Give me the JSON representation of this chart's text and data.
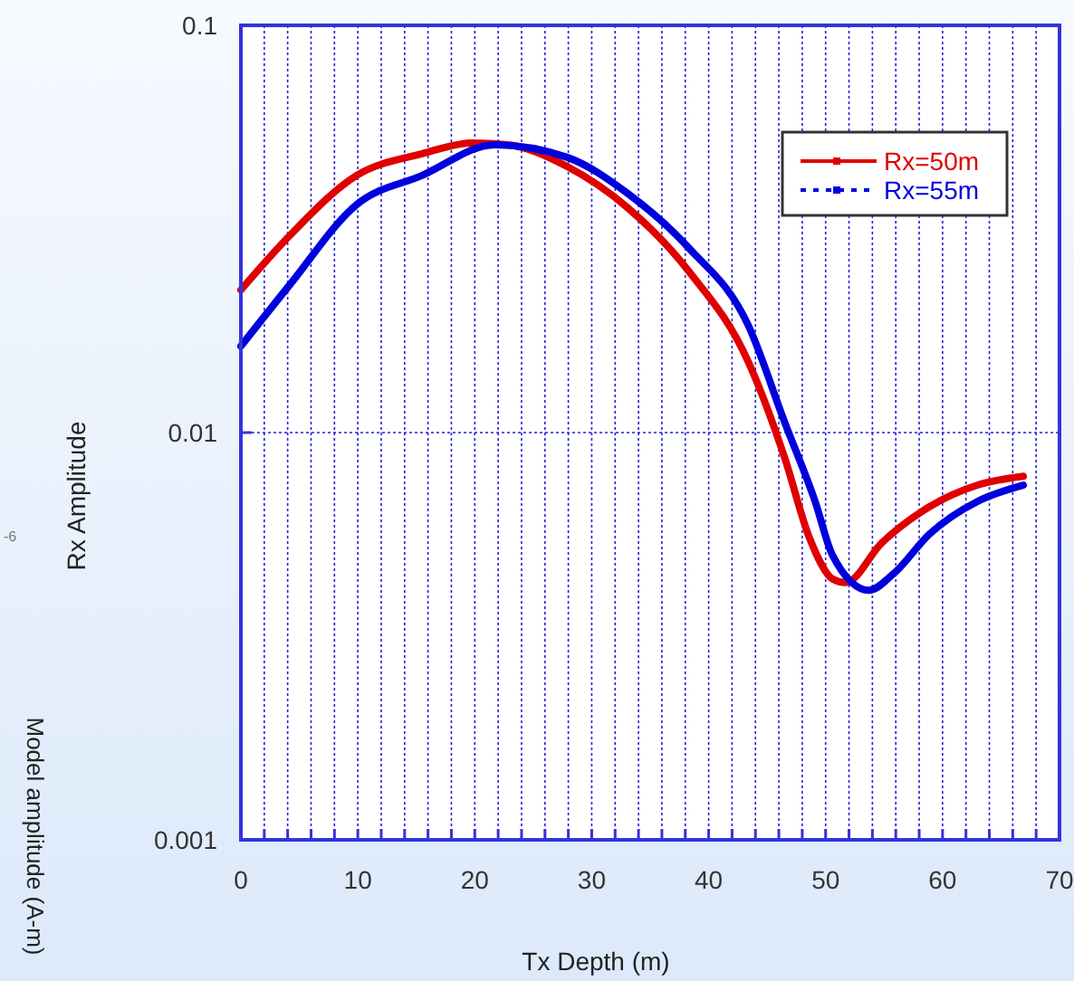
{
  "chart_data": {
    "type": "line",
    "xlabel": "Tx Depth (m)",
    "ylabel": "Rx Amplitude",
    "log": "y",
    "xlim": [
      0,
      70
    ],
    "ylim": [
      0.001,
      0.1
    ],
    "xticks": [
      0,
      {
        "value": 2,
        "label": null
      },
      {
        "value": 4,
        "label": null
      },
      {
        "value": 6,
        "label": null
      },
      {
        "value": 8,
        "label": null
      },
      10,
      {
        "value": 12,
        "label": null
      },
      {
        "value": 14,
        "label": null
      },
      {
        "value": 16,
        "label": null
      },
      {
        "value": 18,
        "label": null
      },
      20,
      {
        "value": 22,
        "label": null
      },
      {
        "value": 24,
        "label": null
      },
      {
        "value": 26,
        "label": null
      },
      {
        "value": 28,
        "label": null
      },
      30,
      {
        "value": 32,
        "label": null
      },
      {
        "value": 34,
        "label": null
      },
      {
        "value": 36,
        "label": null
      },
      {
        "value": 38,
        "label": null
      },
      40,
      {
        "value": 42,
        "label": null
      },
      {
        "value": 44,
        "label": null
      },
      {
        "value": 46,
        "label": null
      },
      {
        "value": 48,
        "label": null
      },
      50,
      {
        "value": 52,
        "label": null
      },
      {
        "value": 54,
        "label": null
      },
      {
        "value": 56,
        "label": null
      },
      {
        "value": 58,
        "label": null
      },
      60,
      {
        "value": 62,
        "label": null
      },
      {
        "value": 64,
        "label": null
      },
      {
        "value": 66,
        "label": null
      },
      {
        "value": 68,
        "label": null
      },
      70
    ],
    "yticks": [
      0.001,
      0.01,
      0.1
    ],
    "grid": true,
    "legend": "top right",
    "annotations": [
      "Model amplitude (A-m)",
      "-6"
    ],
    "series": [
      {
        "name": "Rx=50m",
        "color": "#e00000",
        "x": [
          0,
          4.2,
          9.9,
          15.5,
          19.7,
          22.8,
          27.9,
          33.1,
          38.3,
          43.4,
          46.5,
          48.6,
          50.6,
          51.7,
          54.8,
          58.9,
          63,
          66.9
        ],
        "values": [
          0.0224,
          0.0305,
          0.0428,
          0.0484,
          0.0514,
          0.0509,
          0.045,
          0.0356,
          0.0249,
          0.0149,
          0.00867,
          0.00553,
          0.00437,
          0.00428,
          0.00536,
          0.00658,
          0.00743,
          0.00781
        ]
      },
      {
        "name": "Rx=55m",
        "color": "#0000dd",
        "x": [
          0,
          4.2,
          9.9,
          15.5,
          21.7,
          27.9,
          33.1,
          38.3,
          43.4,
          46.5,
          49.1,
          50.6,
          53.7,
          55.8,
          58.9,
          63,
          66.9
        ],
        "values": [
          0.0163,
          0.0231,
          0.0363,
          0.0428,
          0.0509,
          0.0474,
          0.0386,
          0.0284,
          0.0183,
          0.0106,
          0.00678,
          0.00499,
          0.0041,
          0.0045,
          0.00564,
          0.00678,
          0.00743
        ]
      }
    ]
  }
}
